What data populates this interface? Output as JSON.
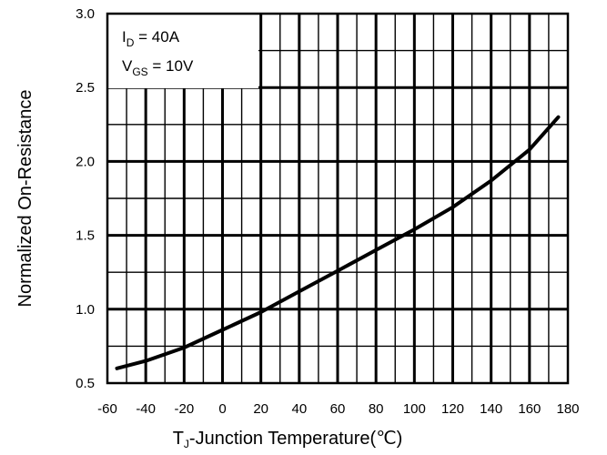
{
  "chart_data": {
    "type": "line",
    "title": "",
    "xlabel": {
      "prefix": "T",
      "sub": "J",
      "rest": "-Junction Temperature(℃)"
    },
    "ylabel": "Normalized On-Resistance",
    "xlim": [
      -60,
      180
    ],
    "ylim": [
      0.5,
      3.0
    ],
    "x_ticks": [
      -60,
      -40,
      -20,
      0,
      20,
      40,
      60,
      80,
      100,
      120,
      140,
      160,
      180
    ],
    "y_ticks": [
      "0.5",
      "1.0",
      "1.5",
      "2.0",
      "2.5",
      "3.0"
    ],
    "grid": true,
    "annotations": [
      {
        "prefix": "I",
        "sub": "D",
        "rest": " = 40A"
      },
      {
        "prefix": "V",
        "sub": "GS",
        "rest": " = 10V"
      }
    ],
    "series": [
      {
        "x": [
          -55,
          -40,
          -20,
          0,
          20,
          40,
          60,
          80,
          100,
          120,
          140,
          160,
          175
        ],
        "y": [
          0.6,
          0.65,
          0.74,
          0.86,
          0.98,
          1.12,
          1.26,
          1.4,
          1.54,
          1.69,
          1.87,
          2.08,
          2.3
        ]
      }
    ]
  }
}
